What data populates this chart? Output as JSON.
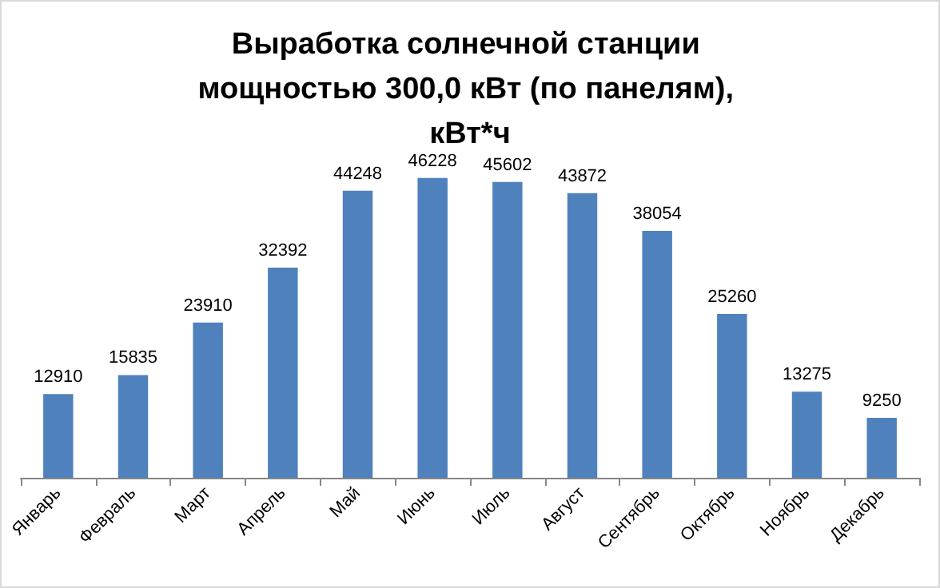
{
  "chart_data": {
    "type": "bar",
    "title": "Выработка солнечной станции мощностью 300,0 кВт (по панелям), кВт*ч",
    "categories": [
      "Январь",
      "Февраль",
      "Март",
      "Апрель",
      "Май",
      "Июнь",
      "Июль",
      "Август",
      "Сентябрь",
      "Октябрь",
      "Ноябрь",
      "Декабрь"
    ],
    "values": [
      12910,
      15835,
      23910,
      32392,
      44248,
      46228,
      45602,
      43872,
      38054,
      25260,
      13275,
      9250
    ],
    "color": "#4f81bd",
    "data_labels": true
  }
}
